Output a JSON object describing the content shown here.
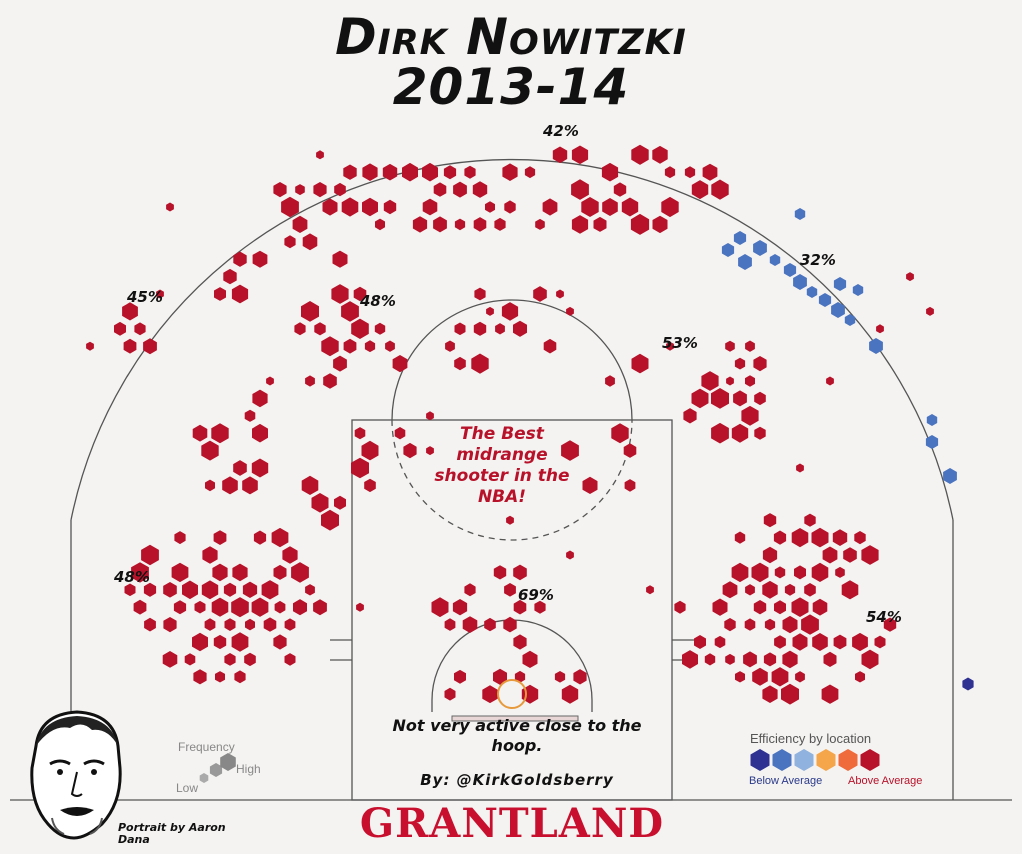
{
  "title": {
    "line1": "Dirk Nowitzki",
    "line2": "2013-14"
  },
  "chart_data": {
    "type": "heatmap",
    "title": "Dirk Nowitzki 2013-14",
    "zone_percentages": [
      {
        "zone": "top of the arc three",
        "label": "42%"
      },
      {
        "zone": "right wing three",
        "label": "32%"
      },
      {
        "zone": "left wing three",
        "label": "45%"
      },
      {
        "zone": "left elbow midrange",
        "label": "48%"
      },
      {
        "zone": "right elbow midrange",
        "label": "53%"
      },
      {
        "zone": "left baseline midrange",
        "label": "48%"
      },
      {
        "zone": "right baseline midrange",
        "label": "54%"
      },
      {
        "zone": "restricted area",
        "label": "69%"
      }
    ],
    "efficiency_scale": [
      "#2e3192",
      "#4a74c0",
      "#8fb2de",
      "#f5a54a",
      "#ef6b3b",
      "#b8122a"
    ]
  },
  "annotations": {
    "midrange_note": "The Best midrange shooter in the NBA!",
    "hoop_note": "Not very active close to the hoop.",
    "credit": "By: @KirkGoldsberry",
    "portrait_credit": "Portrait by Aaron Dana"
  },
  "legend": {
    "frequency_title": "Frequency",
    "frequency_low": "Low",
    "frequency_high": "High",
    "efficiency_title": "Efficiency by location",
    "efficiency_low": "Below Average",
    "efficiency_high": "Above Average"
  },
  "brand": "GRANTLAND",
  "colors": {
    "above_average": "#b8122a",
    "below_average": "#4a74c0",
    "far_below": "#2e3192",
    "court_line": "#555555",
    "background": "#f4f3f1"
  }
}
